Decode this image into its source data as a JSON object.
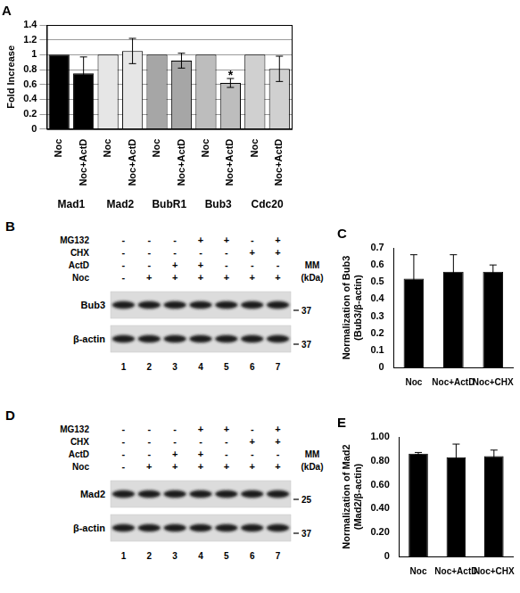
{
  "chart_data": [
    {
      "type": "bar",
      "title": "A",
      "y_label": "Fold Increase",
      "categories": [
        "Noc",
        "Noc+ActD",
        "Noc",
        "Noc+ActD",
        "Noc",
        "Noc+ActD",
        "Noc",
        "Noc+ActD",
        "Noc",
        "Noc+ActD"
      ],
      "groups": [
        "Mad1",
        "Mad2",
        "BubR1",
        "Bub3",
        "Cdc20"
      ],
      "values": [
        1,
        0.75,
        1,
        1.05,
        1,
        0.92,
        1,
        0.62,
        1,
        0.81
      ],
      "errors": [
        null,
        0.22,
        null,
        0.17,
        null,
        0.1,
        null,
        0.06,
        null,
        0.17
      ],
      "colors": [
        "#000000",
        "#000000",
        "#e6e6e6",
        "#e6e6e6",
        "#a6a6a6",
        "#a6a6a6",
        "#bdbdbd",
        "#bdbdbd",
        "#d0d0d0",
        "#d0d0d0"
      ],
      "annotations": [
        {
          "text": "*",
          "index": 7
        }
      ],
      "ylim": [
        0,
        1.4
      ],
      "yticks": [
        0,
        0.2,
        0.4,
        0.6,
        0.8,
        1,
        1.2,
        1.4
      ],
      "grid": true
    },
    {
      "type": "bar",
      "title": "C",
      "y_label": "Normalization of Bub3 (Bub3/β-actin)",
      "categories": [
        "Noc",
        "Noc+ActD",
        "Noc+CHX"
      ],
      "values": [
        0.52,
        0.56,
        0.56
      ],
      "errors": [
        0.14,
        0.1,
        0.04
      ],
      "color": "#000000",
      "ylim": [
        0,
        0.7
      ],
      "yticks": [
        0,
        0.1,
        0.2,
        0.3,
        0.4,
        0.5,
        0.6,
        0.7
      ],
      "grid": false
    },
    {
      "type": "bar",
      "title": "E",
      "y_label": "Normalization of Mad2 (Mad2/β-actin)",
      "categories": [
        "Noc",
        "Noc+ActD",
        "Noc+CHX"
      ],
      "values": [
        0.86,
        0.83,
        0.84
      ],
      "errors": [
        0.01,
        0.11,
        0.05
      ],
      "color": "#000000",
      "ylim": [
        0,
        1
      ],
      "yticks": [
        0,
        {
          "value": 0.2,
          "label": "0.20"
        },
        {
          "value": 0.4,
          "label": "0.40"
        },
        {
          "value": 0.6,
          "label": "0.60"
        },
        {
          "value": 0.8,
          "label": "0.80"
        },
        {
          "value": 1,
          "label": "1.00"
        }
      ],
      "grid": false
    }
  ],
  "blots": [
    {
      "title": "B",
      "rows": [
        {
          "label": "MG132",
          "marks": [
            "-",
            "-",
            "-",
            "+",
            "+",
            "-",
            "+"
          ]
        },
        {
          "label": "CHX",
          "marks": [
            "-",
            "-",
            "-",
            "-",
            "-",
            "+",
            "+"
          ]
        },
        {
          "label": "ActD",
          "marks": [
            "-",
            "-",
            "+",
            "+",
            "-",
            "-",
            "-"
          ]
        },
        {
          "label": "Noc",
          "marks": [
            "-",
            "+",
            "+",
            "+",
            "+",
            "+",
            "+"
          ]
        }
      ],
      "mm_label": "MM",
      "mm_unit": "(kDa)",
      "bands": [
        {
          "label": "Bub3",
          "marker": 37
        },
        {
          "label": "β-actin",
          "marker": 37
        }
      ],
      "lanes": [
        1,
        2,
        3,
        4,
        5,
        6,
        7
      ]
    },
    {
      "title": "D",
      "rows": [
        {
          "label": "MG132",
          "marks": [
            "-",
            "-",
            "-",
            "+",
            "+",
            "-",
            "+"
          ]
        },
        {
          "label": "CHX",
          "marks": [
            "-",
            "-",
            "-",
            "-",
            "-",
            "+",
            "+"
          ]
        },
        {
          "label": "ActD",
          "marks": [
            "-",
            "-",
            "+",
            "+",
            "-",
            "-",
            "-"
          ]
        },
        {
          "label": "Noc",
          "marks": [
            "-",
            "+",
            "+",
            "+",
            "+",
            "+",
            "+"
          ]
        }
      ],
      "mm_label": "MM",
      "mm_unit": "(kDa)",
      "bands": [
        {
          "label": "Mad2",
          "marker": 25
        },
        {
          "label": "β-actin",
          "marker": 37
        }
      ],
      "lanes": [
        1,
        2,
        3,
        4,
        5,
        6,
        7
      ]
    }
  ]
}
